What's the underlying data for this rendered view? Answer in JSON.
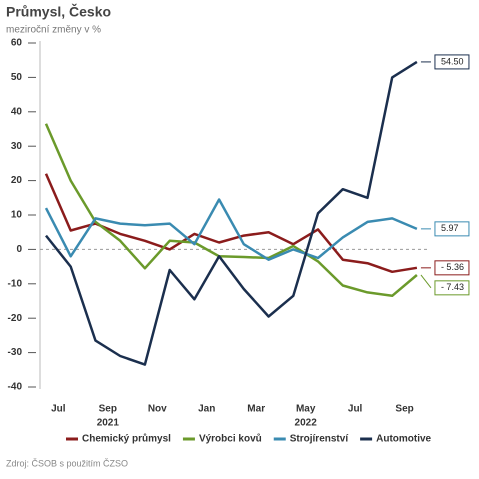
{
  "chart_data": {
    "type": "line",
    "title": "Průmysl, Česko",
    "subtitle": "meziroční změny v %",
    "source": "Zdroj: ČSOB s použitím ČZSO",
    "categories": [
      "Jul",
      null,
      "Sep",
      null,
      "Nov",
      null,
      "Jan",
      null,
      "Mar",
      null,
      "May",
      null,
      "Jul",
      null,
      "Sep",
      null
    ],
    "year_labels": [
      {
        "index": 2,
        "label": "2021"
      },
      {
        "index": 10,
        "label": "2022"
      }
    ],
    "ylim": [
      -40,
      60
    ],
    "yticks": [
      -40,
      -30,
      -20,
      -10,
      0,
      10,
      20,
      30,
      40,
      50,
      60
    ],
    "zero_line": true,
    "legend": "bottom",
    "series": [
      {
        "name": "Chemický průmysl",
        "color": "#8b1c1c",
        "values": [
          22,
          5.5,
          7.5,
          4.5,
          2.5,
          0,
          4.5,
          2,
          4,
          5,
          1.5,
          5.8,
          -3,
          -4,
          -6.5,
          -5.36
        ],
        "value_labels": [
          null,
          null,
          null,
          null,
          null,
          null,
          null,
          null,
          null,
          null,
          null,
          null,
          null,
          null,
          null,
          "- 5.36"
        ]
      },
      {
        "name": "Výrobci kovů",
        "color": "#6b9a2b",
        "values": [
          36.5,
          20,
          8,
          2.5,
          -5.5,
          2.5,
          2,
          -2,
          -2.2,
          -2.5,
          1,
          -3.5,
          -10.5,
          -12.5,
          -13.5,
          -7.43
        ],
        "value_labels": [
          null,
          null,
          null,
          null,
          null,
          null,
          null,
          null,
          null,
          null,
          null,
          null,
          null,
          null,
          null,
          "- 7.43"
        ]
      },
      {
        "name": "Strojírenství",
        "color": "#3a8bb1",
        "values": [
          12,
          -2,
          9,
          7.5,
          7,
          7.5,
          1.5,
          14.5,
          1.5,
          -3,
          0,
          -2.5,
          3.5,
          8,
          9,
          5.97
        ],
        "value_labels": [
          null,
          null,
          null,
          null,
          null,
          null,
          null,
          null,
          null,
          null,
          null,
          null,
          null,
          null,
          null,
          "5.97"
        ]
      },
      {
        "name": "Automotive",
        "color": "#1b2f4e",
        "values": [
          4,
          -5,
          -26.5,
          -31,
          -33.5,
          -6,
          -14.5,
          -2,
          -11.5,
          -19.5,
          -13.5,
          10.5,
          17.5,
          15,
          50,
          54.5
        ],
        "value_labels": [
          null,
          null,
          null,
          null,
          null,
          null,
          null,
          null,
          null,
          null,
          null,
          null,
          null,
          null,
          null,
          "54.50"
        ]
      }
    ]
  }
}
